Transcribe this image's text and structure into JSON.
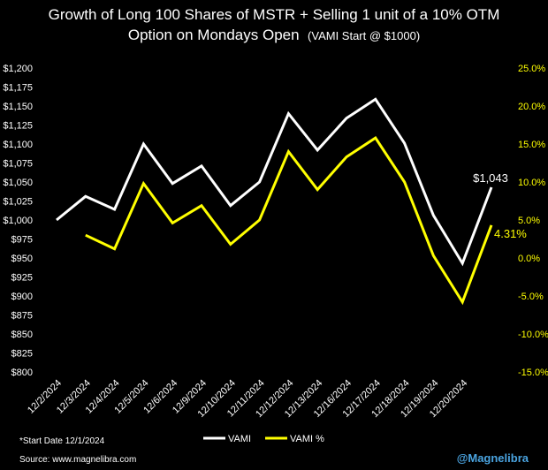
{
  "chart_data": {
    "type": "line",
    "title_line1": "Growth of Long 100 Shares of MSTR + Selling 1 unit of a 10% OTM",
    "title_line2_main": "Option on Mondays Open",
    "title_line2_note": "(VAMI Start @ $1000)",
    "categories": [
      "12/2/2024",
      "12/3/2024",
      "12/4/2024",
      "12/5/2024",
      "12/6/2024",
      "12/9/2024",
      "12/10/2024",
      "12/11/2024",
      "12/12/2024",
      "12/13/2024",
      "12/16/2024",
      "12/17/2024",
      "12/18/2024",
      "12/19/2024",
      "12/20/2024",
      ""
    ],
    "series": [
      {
        "name": "VAMI",
        "axis": "left",
        "color": "#ffffff",
        "values": [
          1000,
          1031,
          1014,
          1100,
          1048,
          1071,
          1019,
          1050,
          1140,
          1092,
          1134,
          1159,
          1101,
          1006,
          943,
          1043
        ]
      },
      {
        "name": "VAMI %",
        "axis": "right",
        "color": "#ffff00",
        "values": [
          null,
          3.0,
          1.2,
          9.8,
          4.6,
          6.9,
          1.8,
          5.0,
          14.0,
          9.0,
          13.3,
          15.8,
          10.0,
          0.3,
          -5.8,
          4.31
        ]
      }
    ],
    "y_left": {
      "min": 800,
      "max": 1200,
      "step": 25,
      "ticks": [
        "$800",
        "$825",
        "$850",
        "$875",
        "$900",
        "$925",
        "$950",
        "$975",
        "$1,000",
        "$1,025",
        "$1,050",
        "$1,075",
        "$1,100",
        "$1,125",
        "$1,150",
        "$1,175",
        "$1,200"
      ]
    },
    "y_right": {
      "min": -15,
      "max": 25,
      "step": 5,
      "ticks": [
        "-15.0%",
        "-10.0%",
        "-5.0%",
        "0.0%",
        "5.0%",
        "10.0%",
        "15.0%",
        "20.0%",
        "25.0%"
      ]
    },
    "end_labels": {
      "vami": "$1,043",
      "pct": "4.31%"
    },
    "legend": [
      "VAMI",
      "VAMI %"
    ],
    "grid": false
  },
  "footer": {
    "start_date": "*Start Date 12/1/2024",
    "source": "Source: www.magnelibra.com",
    "handle": "@Magnelibra"
  },
  "colors": {
    "background": "#000000",
    "vami": "#ffffff",
    "pct": "#ffff00",
    "handle": "#4aa3df"
  }
}
